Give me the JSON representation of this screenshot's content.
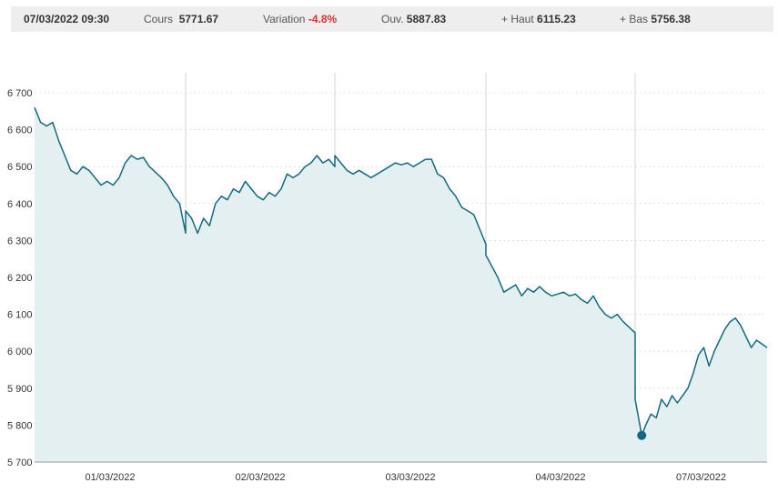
{
  "header": {
    "datetime": "07/03/2022 09:30",
    "cours_label": "Cours",
    "cours_value": "5771.67",
    "variation_label": "Variation",
    "variation_value": "-4.8%",
    "ouverture_label": "Ouv.",
    "ouverture_value": "5887.83",
    "haut_label": "+ Haut",
    "haut_value": "6115.23",
    "bas_label": "+ Bas",
    "bas_value": "5756.38"
  },
  "colors": {
    "line": "#126a80",
    "area": "#e3eff1",
    "negative": "#e0302f",
    "grid": "#cccccc",
    "separator": "#d6d6d6"
  },
  "chart_data": {
    "type": "area",
    "ylim": [
      5700,
      6700
    ],
    "yticks": [
      {
        "value": 5700,
        "label": "5 700"
      },
      {
        "value": 5800,
        "label": "5 800"
      },
      {
        "value": 5900,
        "label": "5 900"
      },
      {
        "value": 6000,
        "label": "6 000"
      },
      {
        "value": 6100,
        "label": "6 100"
      },
      {
        "value": 6200,
        "label": "6 200"
      },
      {
        "value": 6300,
        "label": "6 300"
      },
      {
        "value": 6400,
        "label": "6 400"
      },
      {
        "value": 6500,
        "label": "6 500"
      },
      {
        "value": 6600,
        "label": "6 600"
      },
      {
        "value": 6700,
        "label": "6 700"
      }
    ],
    "categories": [
      "01/03/2022",
      "02/03/2022",
      "03/03/2022",
      "04/03/2022",
      "07/03/2022"
    ],
    "grid": "horizontal dashed, vertical day separators",
    "marker": {
      "day": 4,
      "t": 0.05,
      "value": 5772
    },
    "series": [
      {
        "values": [
          [
            0,
            0.0,
            6660
          ],
          [
            0,
            0.04,
            6620
          ],
          [
            0,
            0.08,
            6610
          ],
          [
            0,
            0.12,
            6620
          ],
          [
            0,
            0.16,
            6570
          ],
          [
            0,
            0.2,
            6530
          ],
          [
            0,
            0.24,
            6490
          ],
          [
            0,
            0.28,
            6480
          ],
          [
            0,
            0.32,
            6500
          ],
          [
            0,
            0.36,
            6490
          ],
          [
            0,
            0.4,
            6470
          ],
          [
            0,
            0.44,
            6450
          ],
          [
            0,
            0.48,
            6460
          ],
          [
            0,
            0.52,
            6450
          ],
          [
            0,
            0.56,
            6470
          ],
          [
            0,
            0.6,
            6510
          ],
          [
            0,
            0.64,
            6530
          ],
          [
            0,
            0.68,
            6520
          ],
          [
            0,
            0.72,
            6525
          ],
          [
            0,
            0.76,
            6500
          ],
          [
            0,
            0.8,
            6485
          ],
          [
            0,
            0.84,
            6470
          ],
          [
            0,
            0.88,
            6450
          ],
          [
            0,
            0.92,
            6420
          ],
          [
            0,
            0.96,
            6400
          ],
          [
            0,
            1.0,
            6320
          ],
          [
            1,
            0.0,
            6380
          ],
          [
            1,
            0.04,
            6360
          ],
          [
            1,
            0.08,
            6320
          ],
          [
            1,
            0.12,
            6360
          ],
          [
            1,
            0.16,
            6340
          ],
          [
            1,
            0.2,
            6400
          ],
          [
            1,
            0.24,
            6420
          ],
          [
            1,
            0.28,
            6410
          ],
          [
            1,
            0.32,
            6440
          ],
          [
            1,
            0.36,
            6430
          ],
          [
            1,
            0.4,
            6460
          ],
          [
            1,
            0.44,
            6440
          ],
          [
            1,
            0.48,
            6420
          ],
          [
            1,
            0.52,
            6410
          ],
          [
            1,
            0.56,
            6430
          ],
          [
            1,
            0.6,
            6420
          ],
          [
            1,
            0.64,
            6440
          ],
          [
            1,
            0.68,
            6480
          ],
          [
            1,
            0.72,
            6470
          ],
          [
            1,
            0.76,
            6480
          ],
          [
            1,
            0.8,
            6500
          ],
          [
            1,
            0.84,
            6510
          ],
          [
            1,
            0.88,
            6530
          ],
          [
            1,
            0.92,
            6510
          ],
          [
            1,
            0.96,
            6520
          ],
          [
            1,
            1.0,
            6500
          ],
          [
            2,
            0.0,
            6530
          ],
          [
            2,
            0.04,
            6510
          ],
          [
            2,
            0.08,
            6490
          ],
          [
            2,
            0.12,
            6480
          ],
          [
            2,
            0.16,
            6490
          ],
          [
            2,
            0.2,
            6480
          ],
          [
            2,
            0.24,
            6470
          ],
          [
            2,
            0.28,
            6480
          ],
          [
            2,
            0.32,
            6490
          ],
          [
            2,
            0.36,
            6500
          ],
          [
            2,
            0.4,
            6510
          ],
          [
            2,
            0.44,
            6505
          ],
          [
            2,
            0.48,
            6510
          ],
          [
            2,
            0.52,
            6500
          ],
          [
            2,
            0.56,
            6510
          ],
          [
            2,
            0.6,
            6520
          ],
          [
            2,
            0.64,
            6520
          ],
          [
            2,
            0.68,
            6480
          ],
          [
            2,
            0.72,
            6470
          ],
          [
            2,
            0.76,
            6440
          ],
          [
            2,
            0.8,
            6420
          ],
          [
            2,
            0.84,
            6390
          ],
          [
            2,
            0.88,
            6380
          ],
          [
            2,
            0.92,
            6370
          ],
          [
            2,
            1.0,
            6290
          ],
          [
            3,
            0.0,
            6260
          ],
          [
            3,
            0.04,
            6230
          ],
          [
            3,
            0.08,
            6200
          ],
          [
            3,
            0.12,
            6160
          ],
          [
            3,
            0.16,
            6170
          ],
          [
            3,
            0.2,
            6180
          ],
          [
            3,
            0.24,
            6150
          ],
          [
            3,
            0.28,
            6170
          ],
          [
            3,
            0.32,
            6160
          ],
          [
            3,
            0.36,
            6175
          ],
          [
            3,
            0.4,
            6160
          ],
          [
            3,
            0.44,
            6150
          ],
          [
            3,
            0.48,
            6155
          ],
          [
            3,
            0.52,
            6160
          ],
          [
            3,
            0.56,
            6150
          ],
          [
            3,
            0.6,
            6155
          ],
          [
            3,
            0.64,
            6140
          ],
          [
            3,
            0.68,
            6130
          ],
          [
            3,
            0.72,
            6150
          ],
          [
            3,
            0.76,
            6120
          ],
          [
            3,
            0.8,
            6100
          ],
          [
            3,
            0.84,
            6090
          ],
          [
            3,
            0.88,
            6100
          ],
          [
            3,
            0.92,
            6080
          ],
          [
            3,
            1.0,
            6050
          ],
          [
            4,
            0.0,
            5870
          ],
          [
            4,
            0.05,
            5772
          ],
          [
            4,
            0.08,
            5800
          ],
          [
            4,
            0.12,
            5830
          ],
          [
            4,
            0.16,
            5820
          ],
          [
            4,
            0.2,
            5870
          ],
          [
            4,
            0.24,
            5850
          ],
          [
            4,
            0.28,
            5880
          ],
          [
            4,
            0.32,
            5860
          ],
          [
            4,
            0.36,
            5880
          ],
          [
            4,
            0.4,
            5900
          ],
          [
            4,
            0.44,
            5940
          ],
          [
            4,
            0.48,
            5990
          ],
          [
            4,
            0.52,
            6010
          ],
          [
            4,
            0.56,
            5960
          ],
          [
            4,
            0.6,
            6000
          ],
          [
            4,
            0.64,
            6030
          ],
          [
            4,
            0.68,
            6060
          ],
          [
            4,
            0.72,
            6080
          ],
          [
            4,
            0.76,
            6090
          ],
          [
            4,
            0.8,
            6070
          ],
          [
            4,
            0.84,
            6040
          ],
          [
            4,
            0.88,
            6010
          ],
          [
            4,
            0.92,
            6030
          ],
          [
            4,
            1.0,
            6010
          ]
        ]
      }
    ]
  }
}
